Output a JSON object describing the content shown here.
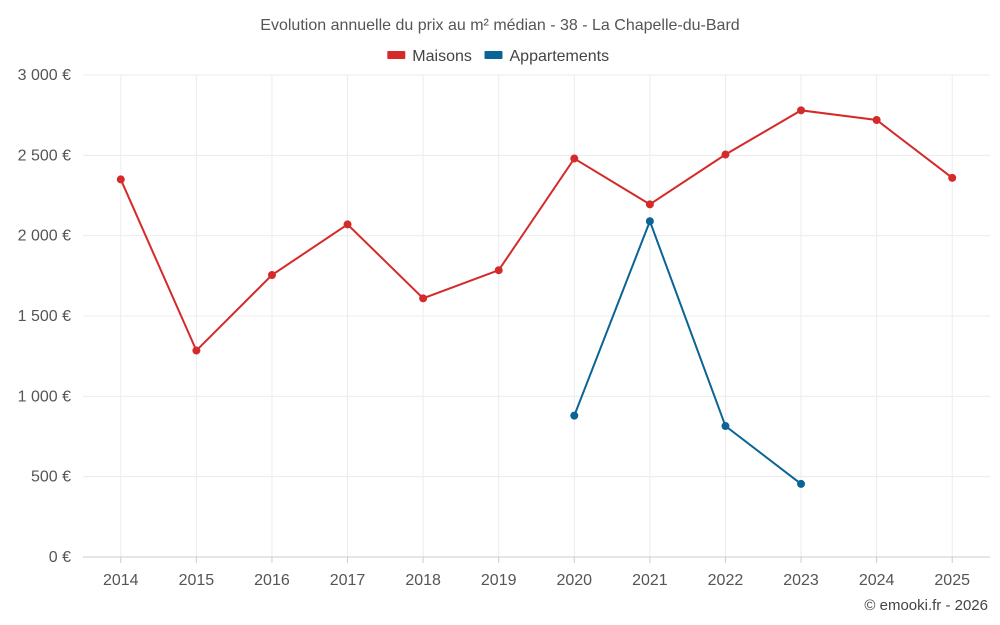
{
  "chart_data": {
    "type": "line",
    "title": "Evolution annuelle du prix au m² médian - 38 - La Chapelle-du-Bard",
    "categories": [
      "2014",
      "2015",
      "2016",
      "2017",
      "2018",
      "2019",
      "2020",
      "2021",
      "2022",
      "2023",
      "2024",
      "2025"
    ],
    "series": [
      {
        "name": "Maisons",
        "color": "#d42a2a",
        "values": [
          2350,
          1285,
          1755,
          2070,
          1610,
          1785,
          2480,
          2195,
          2505,
          2780,
          2720,
          2360
        ]
      },
      {
        "name": "Appartements",
        "color": "#0a6496",
        "values": [
          null,
          null,
          null,
          null,
          null,
          null,
          880,
          2090,
          815,
          455,
          null,
          null
        ]
      }
    ],
    "ylim": [
      0,
      3000
    ],
    "yticks": [
      0,
      500,
      1000,
      1500,
      2000,
      2500,
      3000
    ],
    "ytick_labels": [
      "0 €",
      "500 €",
      "1 000 €",
      "1 500 €",
      "2 000 €",
      "2 500 €",
      "3 000 €"
    ],
    "xlabel": "",
    "ylabel": "",
    "grid": true,
    "legend_position": "top"
  },
  "credit": "© emooki.fr - 2026"
}
